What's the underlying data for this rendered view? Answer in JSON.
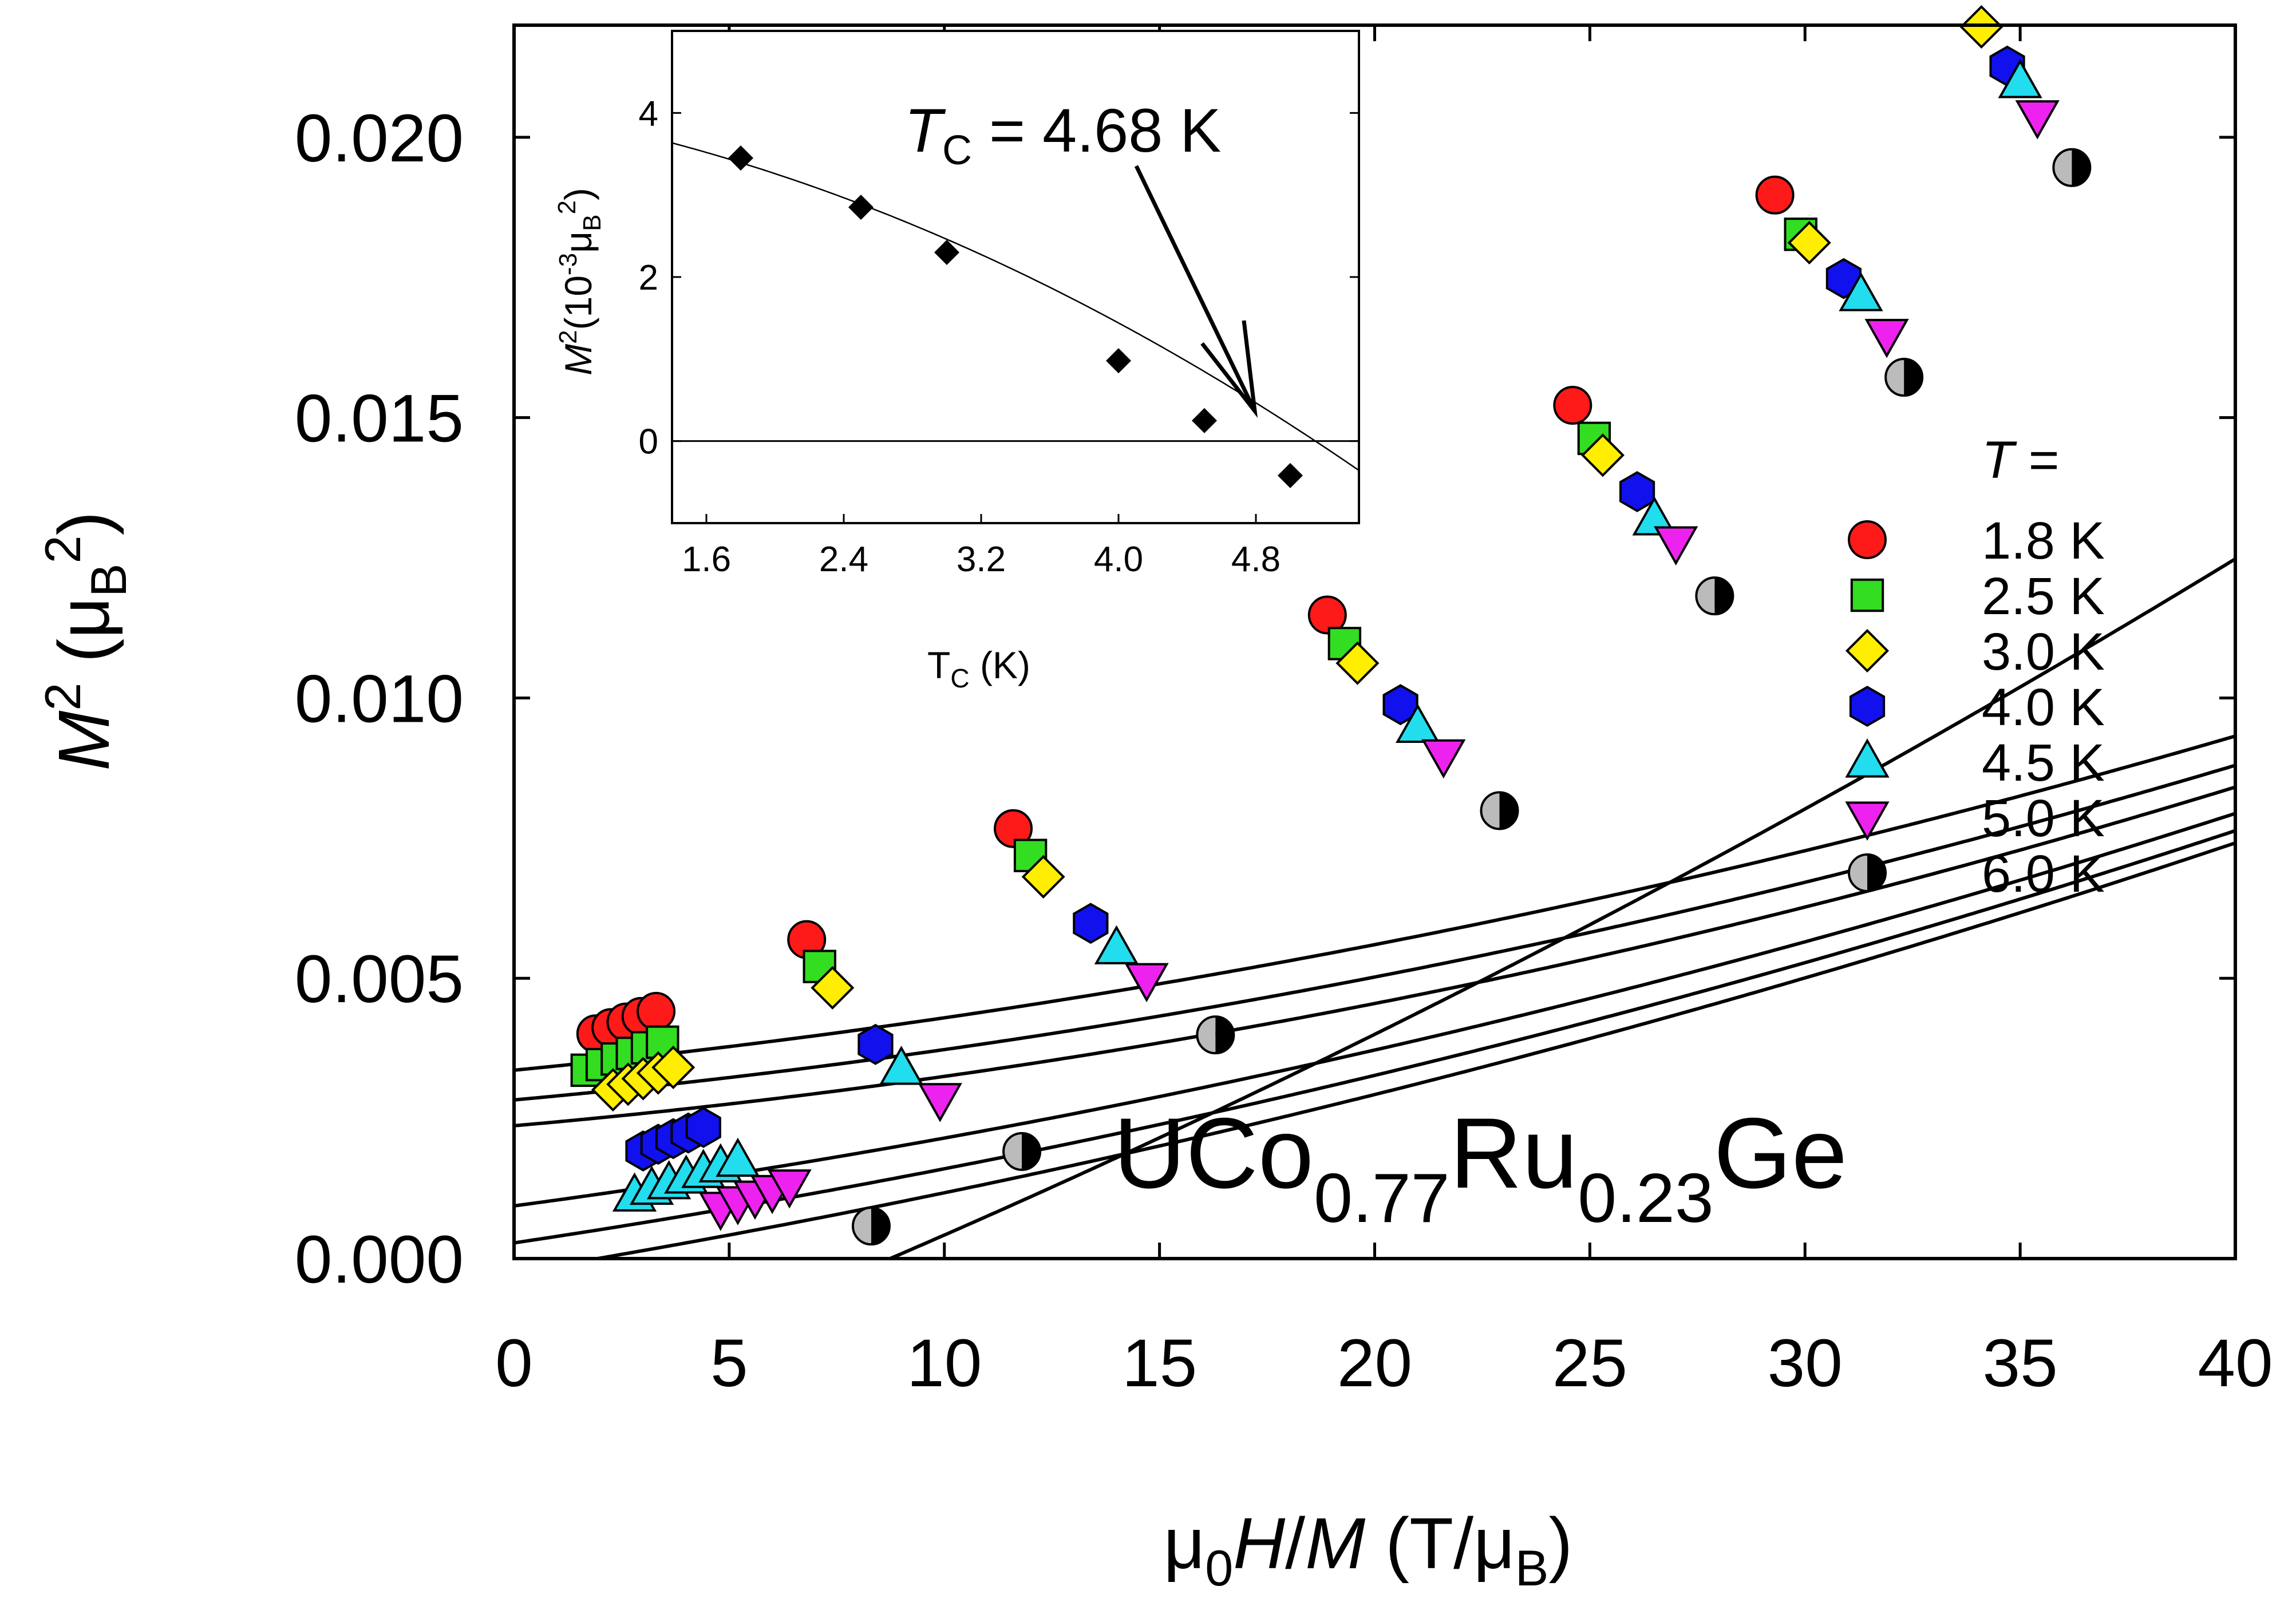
{
  "chart_data": {
    "type": "scatter",
    "title": "",
    "xlabel": "μ0H/M (T/μB)",
    "ylabel": "M2 (μB2)",
    "xlim": [
      0,
      40
    ],
    "ylim": [
      0,
      0.022
    ],
    "x_ticks": [
      "0",
      "5",
      "10",
      "15",
      "20",
      "25",
      "30",
      "35",
      "40"
    ],
    "y_ticks": [
      "0.000",
      "0.005",
      "0.010",
      "0.015",
      "0.020"
    ],
    "legend_title": "T =",
    "legend_title_symbol": "T",
    "legend_title_rest": " =",
    "legend_position": "right",
    "compound_label": {
      "p1": "UCo",
      "s1": "0.77",
      "p2": "Ru",
      "s2": "0.23",
      "p3": "Ge"
    },
    "axis_labels": {
      "x": {
        "mu": "μ",
        "sub0": "0",
        "H": "H",
        "slash": "/",
        "M": "M",
        "open": " (T/μ",
        "subB": "B",
        "close": ")"
      },
      "y": {
        "M": "M",
        "sup2": "2",
        "open": " (μ",
        "subB": "B",
        "sup2b": "2",
        "close": ")"
      }
    },
    "series": [
      {
        "name": "1.8 K",
        "marker": "circle",
        "color": "#ff1a1a",
        "x": [
          1.9,
          2.25,
          2.6,
          2.95,
          3.3,
          6.8,
          11.6,
          18.9,
          24.6,
          29.3
        ],
        "y": [
          0.00401,
          0.00412,
          0.00422,
          0.00432,
          0.00441,
          0.00569,
          0.00767,
          0.01148,
          0.01522,
          0.01897
        ],
        "fit": [
          0.00336,
          7.5e-05,
          1.85e-06
        ]
      },
      {
        "name": "2.5 K",
        "marker": "square",
        "color": "#33dd22",
        "x": [
          1.7,
          2.05,
          2.4,
          2.75,
          3.1,
          3.45,
          7.1,
          12.0,
          19.3,
          25.1,
          29.9
        ],
        "y": [
          0.00336,
          0.00346,
          0.00356,
          0.00366,
          0.00376,
          0.00386,
          0.00521,
          0.00719,
          0.01097,
          0.01463,
          0.01827
        ],
        "fit": [
          0.00283,
          7e-05,
          1.98e-06
        ]
      },
      {
        "name": "3.0 K",
        "marker": "diamond",
        "color": "#ffee00",
        "x": [
          2.3,
          2.65,
          3.0,
          3.35,
          3.7,
          7.4,
          12.3,
          19.6,
          25.3,
          30.1,
          34.1
        ],
        "y": [
          0.00301,
          0.00311,
          0.00321,
          0.00331,
          0.00341,
          0.00483,
          0.00681,
          0.01062,
          0.01433,
          0.01812,
          0.02197
        ],
        "fit": [
          0.00237,
          6.7e-05,
          2.1e-06
        ]
      },
      {
        "name": "4.0 K",
        "marker": "hexagon",
        "color": "#1111ee",
        "x": [
          3.0,
          3.35,
          3.7,
          4.05,
          4.4,
          8.4,
          13.4,
          20.6,
          26.1,
          30.9,
          34.7
        ],
        "y": [
          0.00192,
          0.00204,
          0.00214,
          0.00224,
          0.00234,
          0.00382,
          0.00598,
          0.00988,
          0.01368,
          0.01748,
          0.02127
        ],
        "fit": [
          0.00094,
          0.000103,
          1.8e-06
        ]
      },
      {
        "name": "4.5 K",
        "marker": "triangle-up",
        "color": "#22ddee",
        "x": [
          2.8,
          3.2,
          3.6,
          4.0,
          4.4,
          4.8,
          5.2,
          9.0,
          14.0,
          21.0,
          26.5,
          31.3,
          35.0
        ],
        "y": [
          0.00112,
          0.00124,
          0.00134,
          0.00144,
          0.00154,
          0.00164,
          0.00174,
          0.00338,
          0.00553,
          0.00948,
          0.01318,
          0.01718,
          0.02098
        ],
        "fit": [
          0.00028,
          0.000115,
          1.72e-06
        ]
      },
      {
        "name": "5.0 K",
        "marker": "triangle-down",
        "color": "#ee22ee",
        "x": [
          4.8,
          5.2,
          5.6,
          6.0,
          6.4,
          9.9,
          14.7,
          21.6,
          27.0,
          31.9,
          35.4
        ],
        "y": [
          0.00091,
          0.00101,
          0.00111,
          0.00121,
          0.00131,
          0.00285,
          0.00499,
          0.00898,
          0.01278,
          0.01648,
          0.02038
        ],
        "fit": [
          -0.00025,
          0.000126,
          1.64e-06
        ]
      },
      {
        "name": "6.0 K",
        "marker": "half-circle",
        "color": "#bbbbbb",
        "x": [
          8.3,
          11.8,
          16.3,
          22.9,
          27.9,
          32.3,
          36.2
        ],
        "y": [
          0.00058,
          0.00191,
          0.00399,
          0.00799,
          0.01182,
          0.01572,
          0.01946
        ],
        "fit": [
          -0.00272,
          0.000292,
          2.2e-06
        ]
      }
    ],
    "inset": {
      "type": "scatter",
      "xlabel": "TC (K)",
      "xlabel_main": "T",
      "xlabel_sub": "C",
      "xlabel_rest": " (K)",
      "ylabel": "M2(10-3μB2)",
      "ylabel_parts": {
        "M": "M",
        "sup2": "2",
        "open": "(10",
        "exp": "-3",
        "mu": "μ",
        "subB": "B",
        "sup2b": "2",
        "close": ")"
      },
      "xlim": [
        1.4,
        5.4
      ],
      "ylim": [
        -1,
        5
      ],
      "x_ticks": [
        "1.6",
        "2.4",
        "3.2",
        "4.0",
        "4.8"
      ],
      "y_ticks": [
        "0",
        "2",
        "4"
      ],
      "x": [
        1.8,
        2.5,
        3.0,
        4.0,
        4.5,
        5.0
      ],
      "y": [
        3.45,
        2.85,
        2.3,
        0.98,
        0.25,
        -0.42
      ],
      "fit": [
        4.2,
        -0.25,
        -0.11
      ],
      "zero_line": 0,
      "annotation": {
        "text": "TC = 4.68 K",
        "symbol": "T",
        "sub": "C",
        "rest": " = 4.68 K",
        "arrow_to_x": 4.68
      }
    }
  }
}
